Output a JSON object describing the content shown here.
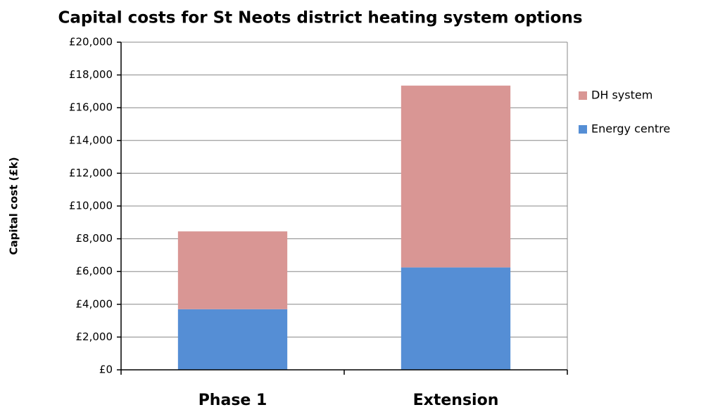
{
  "chart_data": {
    "type": "stacked_bar",
    "title": "Capital costs for St Neots district heating system options",
    "y_label": "Capital cost (£k)",
    "categories": [
      "Phase 1",
      "Extension"
    ],
    "series": [
      {
        "name": "Energy centre",
        "color": "#558ed5",
        "values": [
          3700,
          6250
        ]
      },
      {
        "name": "DH system",
        "color": "#d99694",
        "values": [
          4750,
          11100
        ]
      }
    ],
    "ylim": [
      0,
      20000
    ],
    "yticks": [
      {
        "value": 0,
        "label": "£0"
      },
      {
        "value": 2000,
        "label": "£2,000"
      },
      {
        "value": 4000,
        "label": "£4,000"
      },
      {
        "value": 6000,
        "label": "£6,000"
      },
      {
        "value": 8000,
        "label": "£8,000"
      },
      {
        "value": 10000,
        "label": "£10,000"
      },
      {
        "value": 12000,
        "label": "£12,000"
      },
      {
        "value": 14000,
        "label": "£14,000"
      },
      {
        "value": 16000,
        "label": "£16,000"
      },
      {
        "value": 18000,
        "label": "£18,000"
      },
      {
        "value": 20000,
        "label": "£20,000"
      }
    ],
    "grid": true,
    "legend": "right"
  }
}
